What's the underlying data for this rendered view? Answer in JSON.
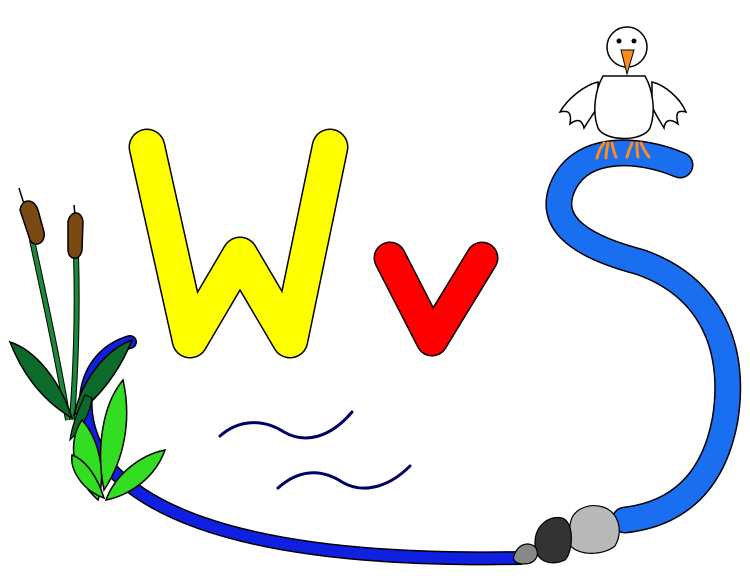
{
  "letters": [
    {
      "glyph": "W",
      "color": "#ffff00"
    },
    {
      "glyph": "v",
      "color": "#ff0000"
    }
  ],
  "colors": {
    "background": "#ffffff",
    "river_dark": "#1020e0",
    "river_light": "#1a6ef0",
    "water_ripple": "#000066",
    "cattail_head": "#7a4a12",
    "cattail_leaf": "#1a8a3a",
    "cattail_leaf_dark": "#0c6a2a",
    "leaf_bright": "#33dd22",
    "rock_dark": "#333333",
    "rock_mid": "#888888",
    "rock_light": "#b8b8b8",
    "bird_body": "#ffffff",
    "bird_beak": "#ff8c1a",
    "bird_feet": "#ff8c1a",
    "outline": "#000000"
  },
  "icons": [
    "cattail-icon",
    "leaf-cluster-icon",
    "bird-icon",
    "rock-icon",
    "water-ripple-icon",
    "river-icon"
  ]
}
